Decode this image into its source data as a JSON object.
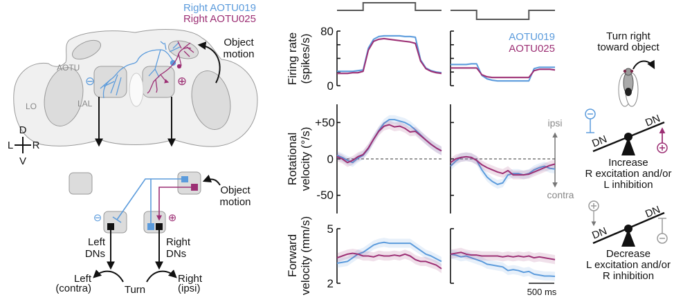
{
  "colors": {
    "aotu019": "#5b9bdc",
    "aotu025": "#9c2f74",
    "gray": "#999999",
    "black": "#111111"
  },
  "brain_diagram": {
    "legend": [
      "Right AOTU019",
      "Right AOTU025"
    ],
    "stimulus_label": [
      "Object",
      "motion"
    ],
    "regions": {
      "aotu": "AOTU",
      "lo": "LO",
      "lal": "LAL"
    },
    "compass": {
      "d": "D",
      "l": "L",
      "r": "R",
      "v": "V"
    },
    "minus": "⊖",
    "plus": "⊕"
  },
  "circuit_diagram": {
    "stimulus_label": [
      "Object",
      "motion"
    ],
    "left_dns": [
      "Left",
      "DNs"
    ],
    "right_dns": [
      "Right",
      "DNs"
    ],
    "left_turn": [
      "Left",
      "(contra)"
    ],
    "right_turn": [
      "Right",
      "(ipsi)"
    ],
    "turn": "Turn"
  },
  "plots": {
    "legend": [
      "AOTU019",
      "AOTU025"
    ],
    "direction": {
      "ipsi": "ipsi",
      "contra": "contra"
    },
    "scale_bar": "500 ms",
    "ylabels": {
      "firing": [
        "Firing rate",
        "(spikes/s)"
      ],
      "rotational": [
        "Rotational",
        "velocity (°/s)"
      ],
      "forward": [
        "Forward",
        "velocity (mm/s)"
      ]
    },
    "ticks": {
      "firing": [
        "80",
        "0"
      ],
      "rotational": [
        "+50",
        "0",
        "-50"
      ],
      "forward": [
        "5",
        "2"
      ]
    }
  },
  "chart_data": [
    {
      "type": "line",
      "panel": "stimulus-ipsi",
      "x_ms": [
        0,
        500,
        500,
        1500,
        1500,
        2000
      ],
      "values": [
        0,
        0,
        1,
        1,
        0,
        0
      ]
    },
    {
      "type": "line",
      "panel": "stimulus-contra",
      "x_ms": [
        0,
        500,
        500,
        1500,
        1500,
        2000
      ],
      "values": [
        0,
        0,
        -1,
        -1,
        0,
        0
      ]
    },
    {
      "type": "line",
      "panel": "firing-ipsi",
      "ylabel": "Firing rate (spikes/s)",
      "ylim": [
        0,
        80
      ],
      "x_ms": [
        0,
        100,
        200,
        300,
        400,
        500,
        600,
        700,
        800,
        900,
        1000,
        1100,
        1200,
        1300,
        1400,
        1500,
        1600,
        1700,
        1800,
        1900,
        2000
      ],
      "series": [
        {
          "name": "AOTU019",
          "values": [
            21,
            21,
            21,
            21,
            22,
            23,
            55,
            68,
            72,
            73,
            73,
            73,
            73,
            72,
            72,
            71,
            38,
            26,
            22,
            20,
            19
          ]
        },
        {
          "name": "AOTU025",
          "values": [
            18,
            18,
            18,
            19,
            19,
            21,
            52,
            65,
            68,
            69,
            68,
            67,
            66,
            65,
            64,
            62,
            36,
            25,
            21,
            19,
            18
          ]
        }
      ]
    },
    {
      "type": "line",
      "panel": "firing-contra",
      "ylim": [
        0,
        80
      ],
      "x_ms": [
        0,
        100,
        200,
        300,
        400,
        500,
        600,
        700,
        800,
        900,
        1000,
        1100,
        1200,
        1300,
        1400,
        1500,
        1600,
        1700,
        1800,
        1900,
        2000
      ],
      "series": [
        {
          "name": "AOTU019",
          "values": [
            31,
            31,
            31,
            31,
            32,
            32,
            15,
            10,
            8,
            7,
            7,
            7,
            7,
            7,
            7,
            7,
            25,
            27,
            27,
            27,
            27
          ]
        },
        {
          "name": "AOTU025",
          "values": [
            26,
            26,
            26,
            26,
            26,
            26,
            16,
            13,
            12,
            12,
            12,
            12,
            12,
            12,
            12,
            12,
            22,
            24,
            24,
            24,
            23
          ]
        }
      ]
    },
    {
      "type": "line",
      "panel": "rotational-ipsi",
      "ylabel": "Rotational velocity (°/s)",
      "ylim": [
        -75,
        75
      ],
      "x_ms": [
        0,
        100,
        200,
        300,
        400,
        500,
        600,
        700,
        800,
        900,
        1000,
        1100,
        1200,
        1300,
        1400,
        1500,
        1600,
        1700,
        1800,
        1900,
        2000
      ],
      "series": [
        {
          "name": "AOTU019",
          "values": [
            5,
            2,
            -2,
            -5,
            1,
            5,
            14,
            27,
            39,
            49,
            54,
            54,
            52,
            50,
            46,
            40,
            33,
            26,
            20,
            15,
            11
          ]
        },
        {
          "name": "AOTU025",
          "values": [
            3,
            0,
            -5,
            -2,
            3,
            6,
            15,
            27,
            38,
            45,
            47,
            44,
            45,
            42,
            37,
            38,
            32,
            26,
            20,
            15,
            11
          ]
        }
      ]
    },
    {
      "type": "line",
      "panel": "rotational-contra",
      "ylim": [
        -75,
        75
      ],
      "x_ms": [
        0,
        100,
        200,
        300,
        400,
        500,
        600,
        700,
        800,
        900,
        1000,
        1100,
        1200,
        1300,
        1400,
        1500,
        1600,
        1700,
        1800,
        1900,
        2000
      ],
      "series": [
        {
          "name": "AOTU019",
          "values": [
            -10,
            -3,
            2,
            3,
            2,
            -2,
            -15,
            -25,
            -31,
            -35,
            -33,
            -22,
            -20,
            -20,
            -22,
            -20,
            -15,
            -12,
            -10,
            -13,
            -14
          ]
        },
        {
          "name": "AOTU025",
          "values": [
            -5,
            0,
            2,
            3,
            2,
            -2,
            -8,
            -12,
            -15,
            -18,
            -20,
            -16,
            -22,
            -22,
            -22,
            -21,
            -18,
            -15,
            -12,
            -9,
            -7
          ]
        }
      ]
    },
    {
      "type": "line",
      "panel": "forward-ipsi",
      "ylabel": "Forward velocity (mm/s)",
      "ylim": [
        2,
        5
      ],
      "x_ms": [
        0,
        100,
        200,
        300,
        400,
        500,
        600,
        700,
        800,
        900,
        1000,
        1100,
        1200,
        1300,
        1400,
        1500,
        1600,
        1700,
        1800,
        1900,
        2000
      ],
      "series": [
        {
          "name": "AOTU019",
          "values": [
            3.1,
            3.15,
            3.2,
            3.4,
            3.6,
            3.7,
            3.9,
            4.1,
            4.2,
            4.25,
            4.2,
            4.2,
            4.2,
            4.2,
            4.2,
            4.0,
            3.8,
            3.6,
            3.5,
            3.35,
            3.2
          ]
        },
        {
          "name": "AOTU025",
          "values": [
            3.4,
            3.5,
            3.6,
            3.65,
            3.6,
            3.5,
            3.5,
            3.45,
            3.55,
            3.5,
            3.5,
            3.55,
            3.5,
            3.6,
            3.5,
            3.3,
            3.2,
            3.2,
            3.1,
            3.0,
            2.8
          ]
        }
      ]
    },
    {
      "type": "line",
      "panel": "forward-contra",
      "ylim": [
        2,
        5
      ],
      "x_ms": [
        0,
        100,
        200,
        300,
        400,
        500,
        600,
        700,
        800,
        900,
        1000,
        1100,
        1200,
        1300,
        1400,
        1500,
        1600,
        1700,
        1800,
        1900,
        2000
      ],
      "series": [
        {
          "name": "AOTU019",
          "values": [
            3.6,
            3.55,
            3.45,
            3.5,
            3.4,
            3.3,
            3.2,
            3.05,
            3.0,
            2.95,
            2.9,
            2.7,
            2.75,
            2.7,
            2.6,
            2.65,
            2.5,
            2.45,
            2.4,
            2.4,
            2.38
          ]
        },
        {
          "name": "AOTU025",
          "values": [
            3.6,
            3.65,
            3.7,
            3.6,
            3.55,
            3.55,
            3.5,
            3.5,
            3.5,
            3.5,
            3.45,
            3.5,
            3.45,
            3.5,
            3.45,
            3.5,
            3.4,
            3.45,
            3.4,
            3.35,
            3.3
          ]
        }
      ]
    }
  ],
  "model": {
    "title": [
      "Turn right",
      "toward object"
    ],
    "dn": "DN",
    "increase": [
      "Increase",
      "R excitation and/or",
      "L inhibition"
    ],
    "decrease": [
      "Decrease",
      "L excitation and/or",
      "R inhibition"
    ]
  }
}
